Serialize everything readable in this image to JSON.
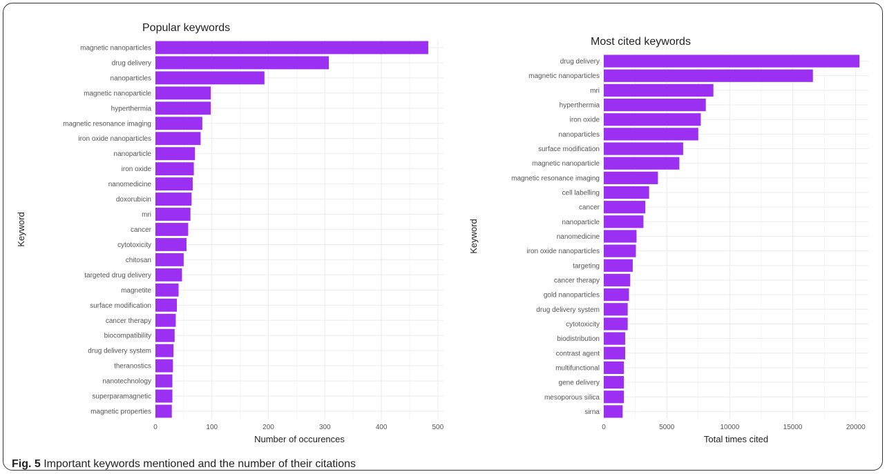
{
  "caption": {
    "label": "Fig. 5",
    "text": "Important keywords mentioned and the number of their citations"
  },
  "colors": {
    "bar": "#9b30f2"
  },
  "chart_data": [
    {
      "type": "bar",
      "orientation": "horizontal",
      "title": "Popular keywords",
      "xlabel": "Number of occurences",
      "ylabel": "Keyword",
      "xlim": [
        0,
        510
      ],
      "xticks": [
        0,
        100,
        200,
        300,
        400,
        500
      ],
      "grid": true,
      "categories": [
        "magnetic nanoparticles",
        "drug delivery",
        "nanoparticles",
        "magnetic nanoparticle",
        "hyperthermia",
        "magnetic resonance imaging",
        "iron oxide nanoparticles",
        "nanoparticle",
        "iron oxide",
        "nanomedicine",
        "doxorubicin",
        "mri",
        "cancer",
        "cytotoxicity",
        "chitosan",
        "targeted drug delivery",
        "magnetite",
        "surface modification",
        "cancer therapy",
        "biocompatibility",
        "drug delivery system",
        "theranostics",
        "nanotechnology",
        "superparamagnetic",
        "magnetic properties"
      ],
      "values": [
        483,
        307,
        193,
        98,
        98,
        83,
        80,
        70,
        68,
        66,
        64,
        62,
        58,
        55,
        50,
        47,
        41,
        38,
        36,
        34,
        32,
        31,
        30,
        30,
        29
      ]
    },
    {
      "type": "bar",
      "orientation": "horizontal",
      "title": "Most cited keywords",
      "xlabel": "Total times cited",
      "ylabel": "Keyword",
      "xlim": [
        0,
        21000
      ],
      "xticks": [
        0,
        5000,
        10000,
        15000,
        20000
      ],
      "grid": true,
      "categories": [
        "drug delivery",
        "magnetic nanoparticles",
        "mri",
        "hyperthermia",
        "iron oxide",
        "nanoparticles",
        "surface modification",
        "magnetic nanoparticle",
        "magnetic resonance imaging",
        "cell labelling",
        "cancer",
        "nanoparticle",
        "nanomedicine",
        "iron oxide nanoparticles",
        "targeting",
        "cancer therapy",
        "gold nanoparticles",
        "drug delivery system",
        "cytotoxicity",
        "biodistribution",
        "contrast agent",
        "multifunctional",
        "gene delivery",
        "mesoporous silica",
        "sirna"
      ],
      "values": [
        20300,
        16600,
        8700,
        8100,
        7700,
        7500,
        6300,
        6000,
        4300,
        3600,
        3300,
        3150,
        2600,
        2550,
        2300,
        2100,
        2000,
        1900,
        1900,
        1700,
        1700,
        1600,
        1600,
        1600,
        1500
      ]
    }
  ]
}
